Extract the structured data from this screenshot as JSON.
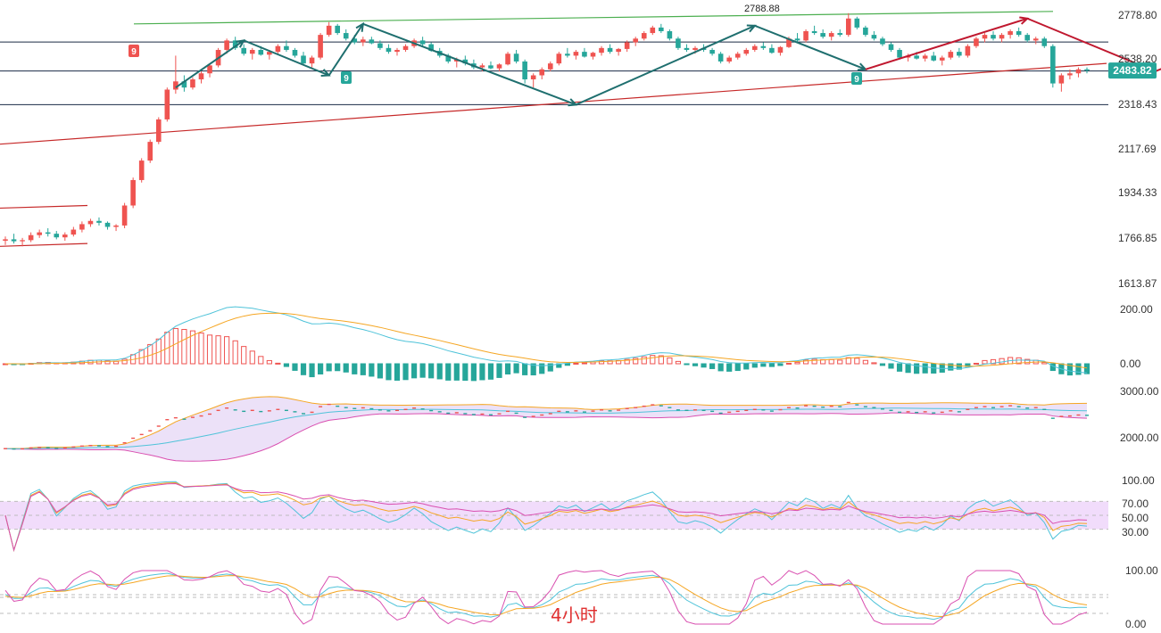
{
  "chart_data": {
    "type": "candlestick",
    "timeframe_label": "4小时",
    "colors": {
      "up": "#ef5350",
      "down": "#26a69a",
      "green_line": "#4caf50",
      "red_line": "#c62828",
      "arrow_teal": "#1f6f6f",
      "arrow_red": "#c0182f"
    },
    "price_panel": {
      "ticks": [
        "2778.80",
        "2538.20",
        "2318.43",
        "2117.69",
        "1934.33",
        "1766.85",
        "1613.87"
      ],
      "last_price": "2483.82",
      "peak_label": "2788.88",
      "sequential_badges": [
        "9",
        "9",
        "9"
      ],
      "horizontal_levels": [
        2632,
        2482,
        2318
      ]
    },
    "candles": [
      [
        1760,
        1775,
        1745,
        1765
      ],
      [
        1765,
        1785,
        1750,
        1758
      ],
      [
        1758,
        1770,
        1740,
        1762
      ],
      [
        1762,
        1790,
        1755,
        1780
      ],
      [
        1780,
        1800,
        1770,
        1790
      ],
      [
        1790,
        1805,
        1775,
        1785
      ],
      [
        1785,
        1795,
        1765,
        1772
      ],
      [
        1772,
        1790,
        1760,
        1782
      ],
      [
        1782,
        1810,
        1775,
        1800
      ],
      [
        1800,
        1830,
        1790,
        1820
      ],
      [
        1820,
        1840,
        1810,
        1832
      ],
      [
        1832,
        1845,
        1815,
        1825
      ],
      [
        1825,
        1830,
        1800,
        1810
      ],
      [
        1810,
        1820,
        1795,
        1815
      ],
      [
        1815,
        1900,
        1805,
        1890
      ],
      [
        1890,
        2000,
        1880,
        1990
      ],
      [
        1990,
        2080,
        1980,
        2070
      ],
      [
        2070,
        2160,
        2060,
        2150
      ],
      [
        2150,
        2260,
        2140,
        2250
      ],
      [
        2250,
        2400,
        2240,
        2390
      ],
      [
        2390,
        2560,
        2370,
        2430
      ],
      [
        2430,
        2460,
        2380,
        2400
      ],
      [
        2400,
        2450,
        2390,
        2440
      ],
      [
        2440,
        2480,
        2420,
        2470
      ],
      [
        2470,
        2520,
        2450,
        2510
      ],
      [
        2510,
        2600,
        2500,
        2590
      ],
      [
        2590,
        2650,
        2570,
        2640
      ],
      [
        2640,
        2660,
        2590,
        2600
      ],
      [
        2600,
        2620,
        2560,
        2570
      ],
      [
        2570,
        2600,
        2540,
        2590
      ],
      [
        2590,
        2610,
        2560,
        2565
      ],
      [
        2565,
        2590,
        2540,
        2580
      ],
      [
        2580,
        2620,
        2570,
        2610
      ],
      [
        2610,
        2640,
        2580,
        2590
      ],
      [
        2590,
        2600,
        2550,
        2560
      ],
      [
        2560,
        2580,
        2510,
        2520
      ],
      [
        2520,
        2560,
        2500,
        2550
      ],
      [
        2550,
        2680,
        2540,
        2670
      ],
      [
        2670,
        2740,
        2660,
        2720
      ],
      [
        2720,
        2730,
        2670,
        2680
      ],
      [
        2680,
        2700,
        2640,
        2650
      ],
      [
        2650,
        2670,
        2620,
        2630
      ],
      [
        2630,
        2660,
        2610,
        2645
      ],
      [
        2645,
        2660,
        2620,
        2625
      ],
      [
        2625,
        2640,
        2590,
        2600
      ],
      [
        2600,
        2620,
        2570,
        2580
      ],
      [
        2580,
        2600,
        2560,
        2590
      ],
      [
        2590,
        2620,
        2580,
        2610
      ],
      [
        2610,
        2650,
        2600,
        2640
      ],
      [
        2640,
        2660,
        2610,
        2620
      ],
      [
        2620,
        2630,
        2580,
        2585
      ],
      [
        2585,
        2600,
        2550,
        2560
      ],
      [
        2560,
        2570,
        2520,
        2530
      ],
      [
        2530,
        2550,
        2500,
        2540
      ],
      [
        2540,
        2560,
        2510,
        2520
      ],
      [
        2520,
        2540,
        2490,
        2500
      ],
      [
        2500,
        2520,
        2480,
        2510
      ],
      [
        2510,
        2530,
        2490,
        2495
      ],
      [
        2495,
        2520,
        2480,
        2515
      ],
      [
        2515,
        2580,
        2510,
        2570
      ],
      [
        2570,
        2590,
        2520,
        2530
      ],
      [
        2530,
        2540,
        2420,
        2440
      ],
      [
        2440,
        2470,
        2400,
        2460
      ],
      [
        2460,
        2500,
        2440,
        2490
      ],
      [
        2490,
        2530,
        2480,
        2520
      ],
      [
        2520,
        2580,
        2510,
        2570
      ],
      [
        2570,
        2600,
        2550,
        2560
      ],
      [
        2560,
        2590,
        2540,
        2580
      ],
      [
        2580,
        2600,
        2550,
        2555
      ],
      [
        2555,
        2580,
        2540,
        2575
      ],
      [
        2575,
        2610,
        2560,
        2600
      ],
      [
        2600,
        2620,
        2570,
        2580
      ],
      [
        2580,
        2600,
        2560,
        2595
      ],
      [
        2595,
        2640,
        2580,
        2630
      ],
      [
        2630,
        2660,
        2610,
        2650
      ],
      [
        2650,
        2690,
        2640,
        2680
      ],
      [
        2680,
        2720,
        2670,
        2710
      ],
      [
        2710,
        2730,
        2680,
        2690
      ],
      [
        2690,
        2700,
        2640,
        2650
      ],
      [
        2650,
        2660,
        2590,
        2600
      ],
      [
        2600,
        2620,
        2580,
        2590
      ],
      [
        2590,
        2610,
        2570,
        2600
      ],
      [
        2600,
        2620,
        2580,
        2590
      ],
      [
        2590,
        2600,
        2560,
        2570
      ],
      [
        2570,
        2580,
        2520,
        2530
      ],
      [
        2530,
        2560,
        2520,
        2550
      ],
      [
        2550,
        2580,
        2540,
        2570
      ],
      [
        2570,
        2600,
        2560,
        2590
      ],
      [
        2590,
        2620,
        2580,
        2610
      ],
      [
        2610,
        2630,
        2590,
        2600
      ],
      [
        2600,
        2620,
        2570,
        2575
      ],
      [
        2575,
        2610,
        2560,
        2605
      ],
      [
        2605,
        2660,
        2600,
        2650
      ],
      [
        2650,
        2680,
        2630,
        2640
      ],
      [
        2640,
        2700,
        2630,
        2690
      ],
      [
        2690,
        2720,
        2670,
        2680
      ],
      [
        2680,
        2700,
        2650,
        2660
      ],
      [
        2660,
        2690,
        2640,
        2680
      ],
      [
        2680,
        2700,
        2660,
        2670
      ],
      [
        2670,
        2790,
        2660,
        2760
      ],
      [
        2760,
        2770,
        2700,
        2710
      ],
      [
        2710,
        2720,
        2660,
        2670
      ],
      [
        2670,
        2690,
        2640,
        2650
      ],
      [
        2650,
        2660,
        2610,
        2620
      ],
      [
        2620,
        2630,
        2580,
        2590
      ],
      [
        2590,
        2600,
        2540,
        2550
      ],
      [
        2550,
        2570,
        2530,
        2560
      ],
      [
        2560,
        2580,
        2540,
        2545
      ],
      [
        2545,
        2570,
        2530,
        2560
      ],
      [
        2560,
        2580,
        2530,
        2535
      ],
      [
        2535,
        2560,
        2510,
        2550
      ],
      [
        2550,
        2590,
        2540,
        2580
      ],
      [
        2580,
        2600,
        2550,
        2560
      ],
      [
        2560,
        2620,
        2550,
        2610
      ],
      [
        2610,
        2660,
        2600,
        2650
      ],
      [
        2650,
        2680,
        2630,
        2670
      ],
      [
        2670,
        2690,
        2640,
        2650
      ],
      [
        2650,
        2680,
        2630,
        2670
      ],
      [
        2670,
        2700,
        2650,
        2690
      ],
      [
        2690,
        2710,
        2660,
        2670
      ],
      [
        2670,
        2680,
        2630,
        2640
      ],
      [
        2640,
        2660,
        2620,
        2650
      ],
      [
        2650,
        2660,
        2600,
        2610
      ],
      [
        2610,
        2620,
        2400,
        2420
      ],
      [
        2420,
        2470,
        2380,
        2460
      ],
      [
        2460,
        2490,
        2440,
        2470
      ],
      [
        2470,
        2500,
        2450,
        2490
      ],
      [
        2490,
        2500,
        2470,
        2484
      ]
    ],
    "channel_segments": [
      {
        "name": "green",
        "from": [
          150,
          2730
        ],
        "to": [
          1180,
          2800
        ]
      },
      {
        "name": "red",
        "from": [
          0,
          2140
        ],
        "to": [
          1240,
          2520
        ]
      },
      {
        "name": "box-top",
        "from": [
          0,
          1880
        ],
        "to": [
          98,
          1890
        ]
      },
      {
        "name": "box-bottom",
        "from": [
          0,
          1740
        ],
        "to": [
          98,
          1750
        ]
      }
    ],
    "macd_panel": {
      "ticks": [
        "200.00",
        "0.00"
      ]
    },
    "boll_panel": {
      "ticks": [
        "3000.00",
        "2000.00"
      ]
    },
    "rsi_panel": {
      "ticks": [
        "100.00",
        "70.00",
        "50.00",
        "30.00"
      ]
    },
    "kdj_panel": {
      "ticks": [
        "100.00",
        "0.00"
      ]
    }
  }
}
